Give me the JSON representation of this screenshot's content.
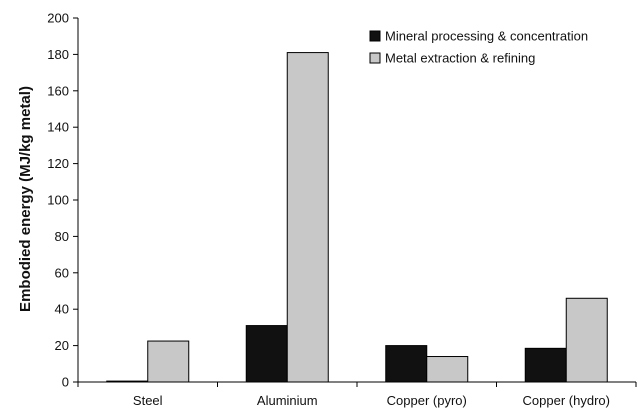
{
  "chart_data": {
    "type": "bar",
    "title": "",
    "xlabel": "",
    "ylabel": "Embodied energy (MJ/kg metal)",
    "ylim": [
      0,
      200
    ],
    "yticks": [
      0,
      20,
      40,
      60,
      80,
      100,
      120,
      140,
      160,
      180,
      200
    ],
    "categories": [
      "Steel",
      "Aluminium",
      "Copper (pyro)",
      "Copper (hydro)"
    ],
    "series": [
      {
        "name": "Mineral processing & concentration",
        "values": [
          0.5,
          31,
          20,
          18.5
        ],
        "color": "#111111"
      },
      {
        "name": "Metal extraction & refining",
        "values": [
          22.5,
          181,
          14,
          46
        ],
        "color": "#c8c8c8"
      }
    ],
    "grid": false,
    "legend_position": "top-right"
  }
}
